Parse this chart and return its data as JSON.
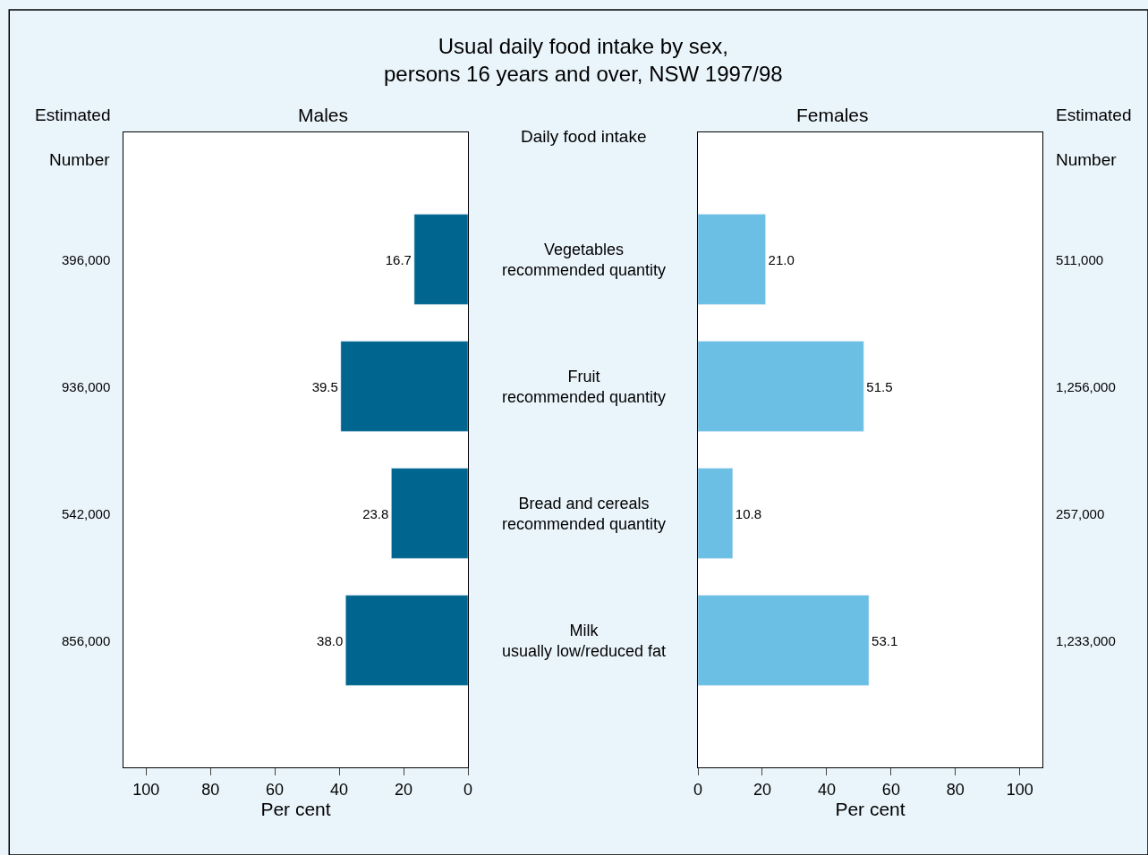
{
  "chart_data": [
    {
      "type": "bar",
      "orientation": "horizontal",
      "title": "Usual daily food intake by sex,\npersons 16 years and over, NSW 1997/98",
      "subtitle": "Males",
      "ylabel": "Daily food intake",
      "xlabel": "Per cent",
      "categories": [
        "Vegetables\nrecommended quantity",
        "Fruit\nrecommended quantity",
        "Bread and cereals\nrecommended quantity",
        "Milk\nusually low/reduced fat"
      ],
      "values": [
        16.7,
        39.5,
        23.8,
        38.0
      ],
      "color": "#00668f",
      "value_labels": [
        "16.7",
        "39.5",
        "23.8",
        "38.0"
      ],
      "xlim": [
        107,
        0
      ],
      "xticks": [
        100,
        80,
        60,
        40,
        20,
        0
      ],
      "annotations": [
        "Estimated\nNumber",
        "396,000",
        "936,000",
        "542,000",
        "856,000"
      ]
    },
    {
      "type": "bar",
      "orientation": "horizontal",
      "subtitle": "Females",
      "xlabel": "Per cent",
      "categories": [
        null,
        null,
        null,
        null
      ],
      "values": [
        21.0,
        51.5,
        10.8,
        53.1
      ],
      "color": "#6bbfe4",
      "value_labels": [
        "21.0",
        "51.5",
        "10.8",
        "53.1"
      ],
      "xlim": [
        0,
        107
      ],
      "xticks": [
        0,
        20,
        40,
        60,
        80,
        100
      ],
      "annotations": [
        "Estimated\nNumber",
        "511,000",
        "1,256,000",
        "257,000",
        "1,233,000"
      ]
    }
  ]
}
